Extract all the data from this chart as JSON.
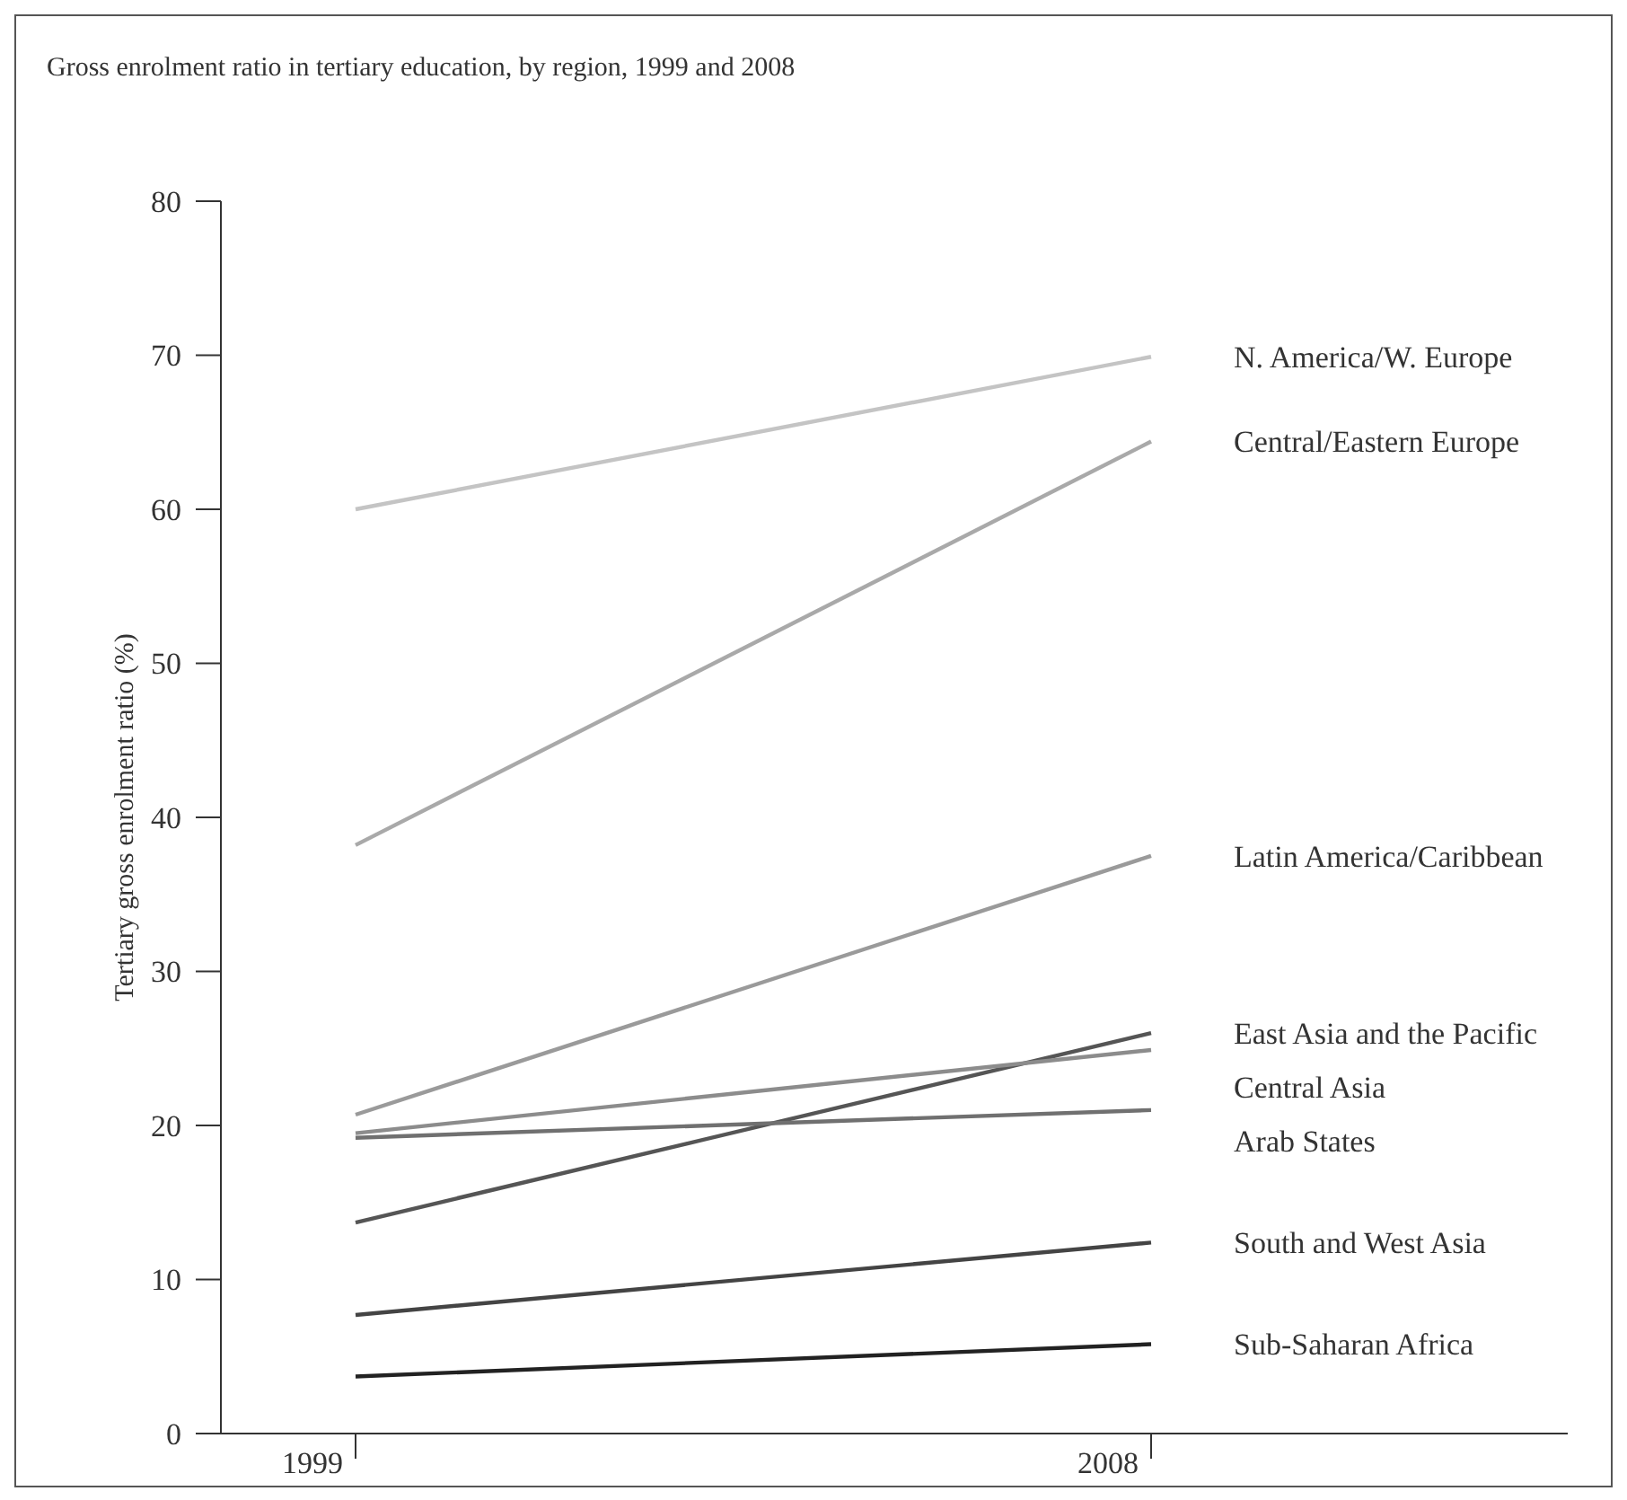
{
  "chart_data": {
    "type": "line",
    "title": "Gross enrolment ratio in tertiary education, by region, 1999 and 2008",
    "ylabel": "Tertiary gross enrolment ratio (%)",
    "categories": [
      "1999",
      "2008"
    ],
    "ylim": [
      0,
      80
    ],
    "yticks": [
      0,
      10,
      20,
      30,
      40,
      50,
      60,
      70,
      80
    ],
    "grid": false,
    "marker": "none",
    "line_style": "solid",
    "series": [
      {
        "name": "N. America/W. Europe",
        "color": "#c4c4c4",
        "values": [
          60.0,
          69.9
        ]
      },
      {
        "name": "Central/Eastern Europe",
        "color": "#a9a9a9",
        "values": [
          38.2,
          64.4
        ]
      },
      {
        "name": "Latin America/Caribbean",
        "color": "#9a9a9a",
        "values": [
          20.7,
          37.5
        ]
      },
      {
        "name": "East Asia and the Pacific",
        "color": "#555555",
        "values": [
          13.7,
          26.0
        ]
      },
      {
        "name": "Central Asia",
        "color": "#8c8c8c",
        "values": [
          19.5,
          24.9
        ]
      },
      {
        "name": "Arab States",
        "color": "#707070",
        "values": [
          19.2,
          21.0
        ]
      },
      {
        "name": "South and West Asia",
        "color": "#444444",
        "values": [
          7.7,
          12.4
        ]
      },
      {
        "name": "Sub-Saharan Africa",
        "color": "#222222",
        "values": [
          3.7,
          5.8
        ]
      }
    ]
  }
}
